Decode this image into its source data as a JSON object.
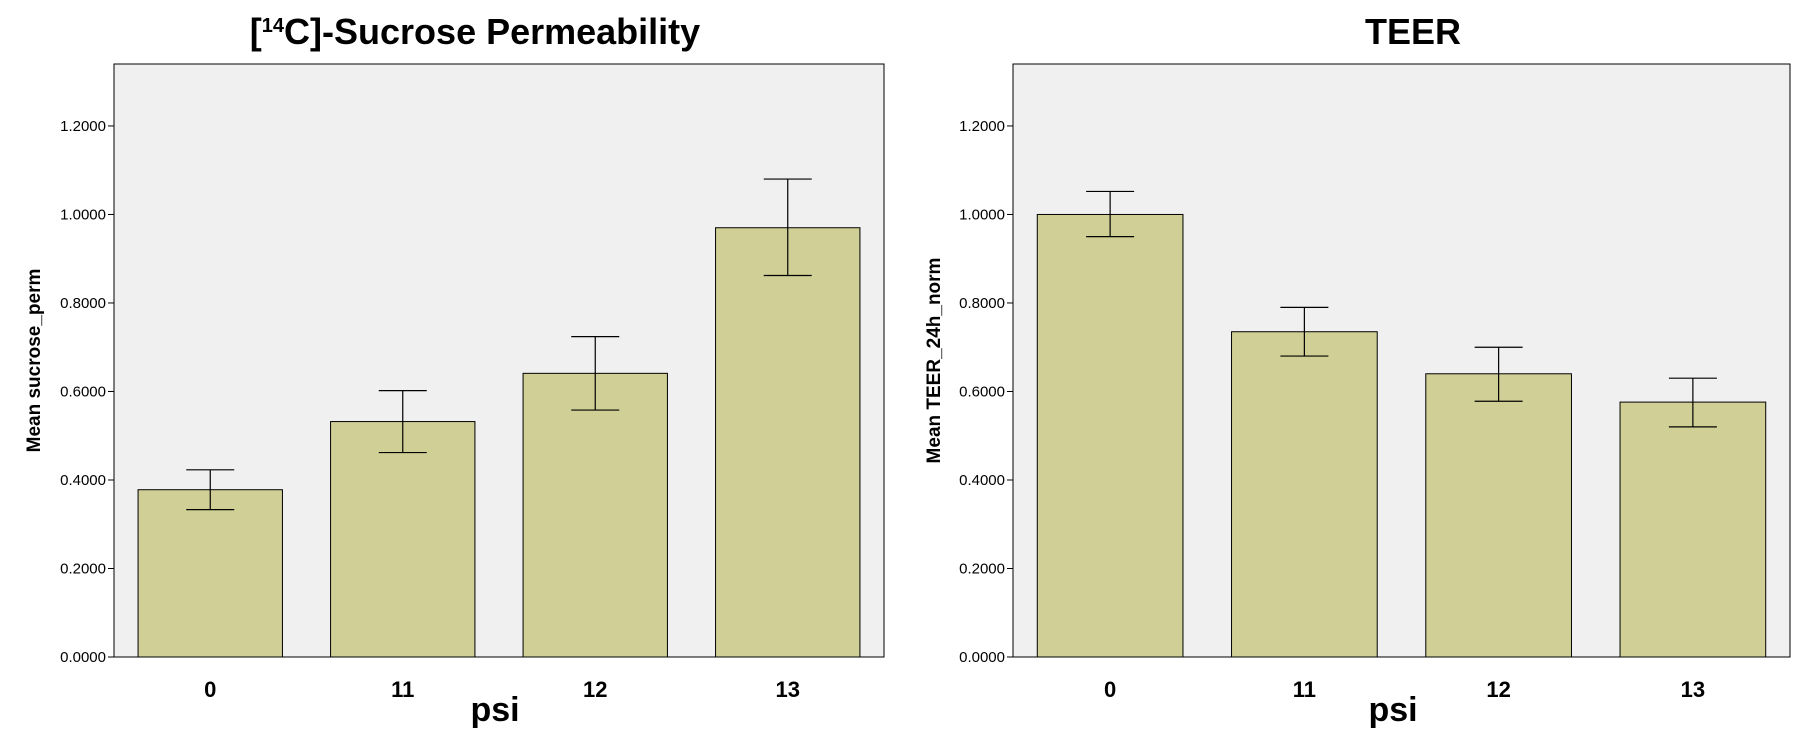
{
  "chart_data": [
    {
      "type": "bar",
      "title": {
        "pre": "[",
        "sup": "14",
        "post": "C]-Sucrose Permeability"
      },
      "xlabel": "psi",
      "ylabel": "Mean sucrose_perm",
      "categories": [
        "0",
        "11",
        "12",
        "13"
      ],
      "values": [
        0.378,
        0.532,
        0.641,
        0.97
      ],
      "error_low": [
        0.333,
        0.462,
        0.558,
        0.862
      ],
      "error_high": [
        0.423,
        0.602,
        0.724,
        1.08
      ],
      "ylim": [
        0,
        1.34
      ],
      "yticks": [
        0.0,
        0.2,
        0.4,
        0.6,
        0.8,
        1.0,
        1.2
      ],
      "ytick_labels": [
        "0.0000",
        "0.2000",
        "0.4000",
        "0.6000",
        "0.8000",
        "1.0000",
        "1.2000"
      ],
      "colors": {
        "bar": "#cfcf96",
        "plot_bg": "#eff0ef"
      }
    },
    {
      "type": "bar",
      "title": {
        "pre": "TEER",
        "sup": "",
        "post": ""
      },
      "xlabel": "psi",
      "ylabel": "Mean TEER_24h_norm",
      "categories": [
        "0",
        "11",
        "12",
        "13"
      ],
      "values": [
        1.0,
        0.735,
        0.64,
        0.576
      ],
      "error_low": [
        0.95,
        0.68,
        0.578,
        0.52
      ],
      "error_high": [
        1.052,
        0.79,
        0.7,
        0.63
      ],
      "ylim": [
        0,
        1.34
      ],
      "yticks": [
        0.0,
        0.2,
        0.4,
        0.6,
        0.8,
        1.0,
        1.2
      ],
      "ytick_labels": [
        "0.0000",
        "0.2000",
        "0.4000",
        "0.6000",
        "0.8000",
        "1.0000",
        "1.2000"
      ],
      "colors": {
        "bar": "#cfcf96",
        "plot_bg": "#eff0ef"
      }
    }
  ]
}
